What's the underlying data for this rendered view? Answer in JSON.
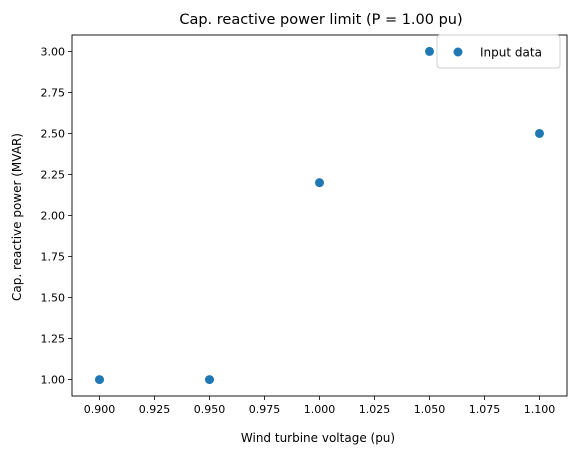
{
  "chart_data": {
    "type": "scatter",
    "title": "Cap. reactive power limit (P = 1.00 pu)",
    "xlabel": "Wind turbine voltage (pu)",
    "ylabel": "Cap. reactive power (MVAR)",
    "xlim": [
      0.8875,
      1.1125
    ],
    "ylim": [
      0.9,
      3.1
    ],
    "xticks": [
      0.9,
      0.925,
      0.95,
      0.975,
      1.0,
      1.025,
      1.05,
      1.075,
      1.1
    ],
    "xtick_labels": [
      "0.900",
      "0.925",
      "0.950",
      "0.975",
      "1.000",
      "1.025",
      "1.050",
      "1.075",
      "1.100"
    ],
    "yticks": [
      1.0,
      1.25,
      1.5,
      1.75,
      2.0,
      2.25,
      2.5,
      2.75,
      3.0
    ],
    "ytick_labels": [
      "1.00",
      "1.25",
      "1.50",
      "1.75",
      "2.00",
      "2.25",
      "2.50",
      "2.75",
      "3.00"
    ],
    "grid": false,
    "legend_position": "top-right",
    "series": [
      {
        "name": "Input data",
        "color": "#1f77b4",
        "x": [
          0.9,
          0.95,
          1.0,
          1.05,
          1.1
        ],
        "y": [
          1.0,
          1.0,
          2.2,
          3.0,
          2.5
        ]
      }
    ]
  }
}
